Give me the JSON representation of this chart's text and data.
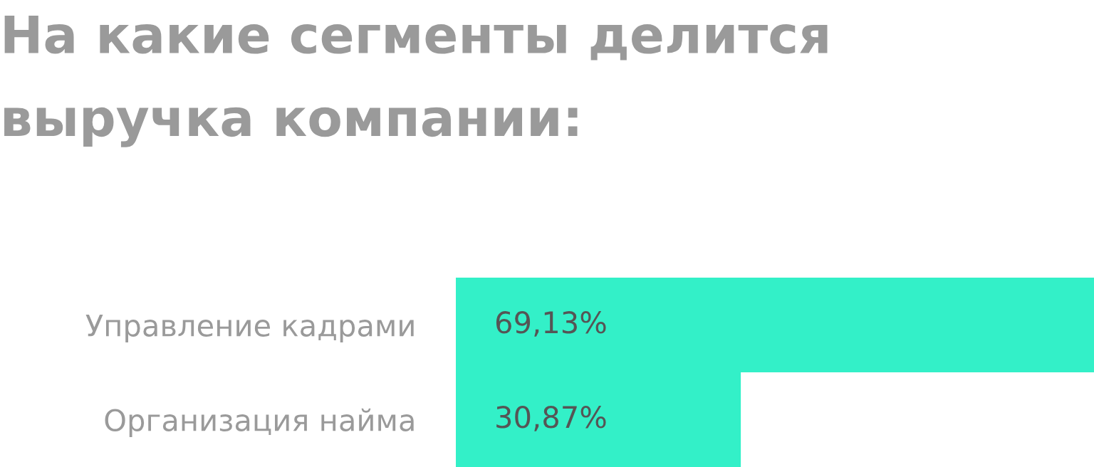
{
  "chart_data": {
    "type": "bar",
    "orientation": "horizontal",
    "title": "На какие сегменты делится\nвыручка компании:",
    "categories": [
      "Управление кадрами",
      "Организация найма"
    ],
    "values": [
      69.13,
      30.87
    ],
    "value_labels": [
      "69,13%",
      "30,87%"
    ],
    "color": "#33f0c8",
    "grid": false,
    "legend": false
  }
}
